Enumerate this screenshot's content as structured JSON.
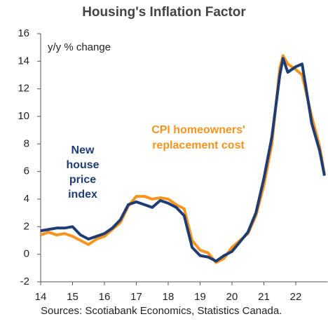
{
  "chart_data": {
    "type": "line",
    "title": "Housing's Inflation Factor",
    "y_label": "y/y % change",
    "x": [
      14,
      14.25,
      14.5,
      14.75,
      15,
      15.25,
      15.5,
      15.75,
      16,
      16.25,
      16.5,
      16.75,
      17,
      17.25,
      17.5,
      17.75,
      18,
      18.25,
      18.5,
      18.75,
      19,
      19.25,
      19.5,
      19.75,
      20,
      20.25,
      20.5,
      20.75,
      21,
      21.25,
      21.5,
      21.6,
      21.75,
      22,
      22.2,
      22.5,
      22.75,
      22.9
    ],
    "series": [
      {
        "name": "CPI  homeowners' replacement cost",
        "color": "#f7941d",
        "values": [
          1.4,
          1.6,
          1.4,
          1.5,
          1.3,
          1.0,
          0.7,
          1.1,
          1.3,
          1.8,
          2.3,
          3.5,
          4.2,
          4.2,
          4.0,
          4.1,
          4.0,
          3.6,
          3.3,
          1.0,
          0.3,
          0.1,
          -0.6,
          -0.3,
          0.5,
          1.0,
          1.5,
          2.8,
          5.0,
          8.0,
          13.5,
          14.4,
          13.8,
          13.4,
          13.0,
          10.0,
          7.8,
          5.8
        ]
      },
      {
        "name": "New house price index",
        "color": "#1f3c74",
        "values": [
          1.7,
          1.8,
          1.9,
          1.9,
          2.0,
          1.4,
          1.1,
          1.3,
          1.5,
          1.9,
          2.5,
          3.6,
          3.8,
          3.6,
          3.4,
          3.9,
          3.7,
          3.4,
          2.8,
          0.5,
          -0.1,
          -0.2,
          -0.5,
          -0.1,
          0.2,
          0.9,
          1.6,
          3.0,
          5.5,
          8.5,
          13.0,
          14.2,
          13.2,
          13.6,
          13.8,
          9.5,
          7.5,
          5.7
        ]
      }
    ],
    "annotations": [
      [
        "CPI  homeowners'",
        "replacement cost"
      ],
      [
        "New",
        "house",
        "price",
        "index"
      ]
    ],
    "xlim": [
      14,
      23
    ],
    "xticks": [
      14,
      15,
      16,
      17,
      18,
      19,
      20,
      21,
      22
    ],
    "ylim": [
      -2,
      16
    ],
    "yticks": [
      -2,
      0,
      2,
      4,
      6,
      8,
      10,
      12,
      14,
      16
    ],
    "source": "Sources: Scotiabank Economics, Statistics Canada."
  }
}
